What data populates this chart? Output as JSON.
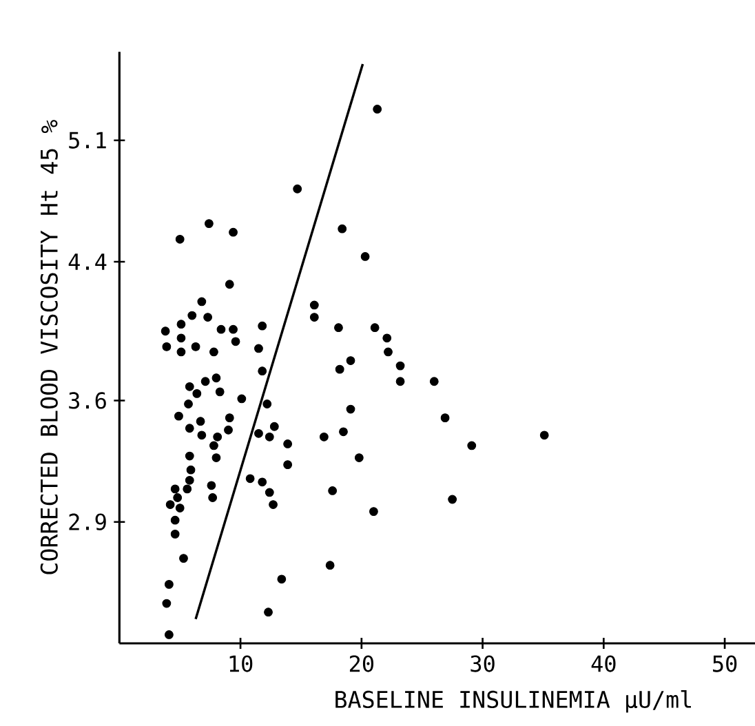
{
  "chart_data": {
    "type": "scatter",
    "xlabel": "BASELINE INSULINEMIA μU/ml",
    "ylabel": "CORRECTED BLOOD VISCOSITY Ht 45 %",
    "xlim": [
      0,
      52.5
    ],
    "ylim": [
      2.2,
      5.61
    ],
    "xticks": [
      10,
      20,
      30,
      40,
      50
    ],
    "yticks": [
      2.9,
      3.6,
      4.4,
      5.1
    ],
    "grid": false,
    "legend": false,
    "series": [
      {
        "color": "#000000",
        "x": [
          21.3,
          14.7,
          18.4,
          7.4,
          9.4,
          5.0,
          20.3,
          9.1,
          16.1,
          16.1,
          6.8,
          6.0,
          7.3,
          5.1,
          3.8,
          8.4,
          9.4,
          11.8,
          18.1,
          21.1,
          5.1,
          9.6,
          3.9,
          6.3,
          7.8,
          11.5,
          5.1,
          22.1,
          22.2,
          23.2,
          23.2,
          26.0,
          26.9,
          29.1,
          35.1,
          27.5,
          11.8,
          18.2,
          19.1,
          5.8,
          6.4,
          7.1,
          8.0,
          8.3,
          10.1,
          5.7,
          12.2,
          19.1,
          4.9,
          6.7,
          9.1,
          5.8,
          9.0,
          6.8,
          8.1,
          11.5,
          12.4,
          12.8,
          13.9,
          16.9,
          18.5,
          7.8,
          5.8,
          8.0,
          19.8,
          13.9,
          5.9,
          5.8,
          10.8,
          11.8,
          4.6,
          5.6,
          7.6,
          4.8,
          7.7,
          12.4,
          17.6,
          4.2,
          5.0,
          12.7,
          21.0,
          4.6,
          4.6,
          5.3,
          17.4,
          13.4,
          4.1,
          3.9,
          12.3,
          4.1
        ],
        "values": [
          5.28,
          4.82,
          4.59,
          4.62,
          4.57,
          4.53,
          4.43,
          4.27,
          4.15,
          4.08,
          4.17,
          4.09,
          4.08,
          4.04,
          4.0,
          4.01,
          4.01,
          4.03,
          4.02,
          4.02,
          3.96,
          3.94,
          3.91,
          3.91,
          3.88,
          3.9,
          3.88,
          3.96,
          3.88,
          3.8,
          3.71,
          3.71,
          3.5,
          3.34,
          3.4,
          3.03,
          3.77,
          3.78,
          3.83,
          3.68,
          3.64,
          3.71,
          3.73,
          3.65,
          3.61,
          3.58,
          3.58,
          3.55,
          3.51,
          3.48,
          3.5,
          3.44,
          3.43,
          3.4,
          3.39,
          3.41,
          3.39,
          3.45,
          3.35,
          3.39,
          3.42,
          3.34,
          3.28,
          3.27,
          3.27,
          3.23,
          3.2,
          3.14,
          3.15,
          3.13,
          3.09,
          3.09,
          3.11,
          3.04,
          3.04,
          3.07,
          3.08,
          3.0,
          2.98,
          3.0,
          2.96,
          2.91,
          2.83,
          2.69,
          2.65,
          2.57,
          2.54,
          2.43,
          2.38,
          2.25
        ]
      },
      {
        "type": "line",
        "color": "#000000",
        "x": [
          6.3,
          20.1
        ],
        "values": [
          2.34,
          5.54
        ]
      }
    ]
  }
}
